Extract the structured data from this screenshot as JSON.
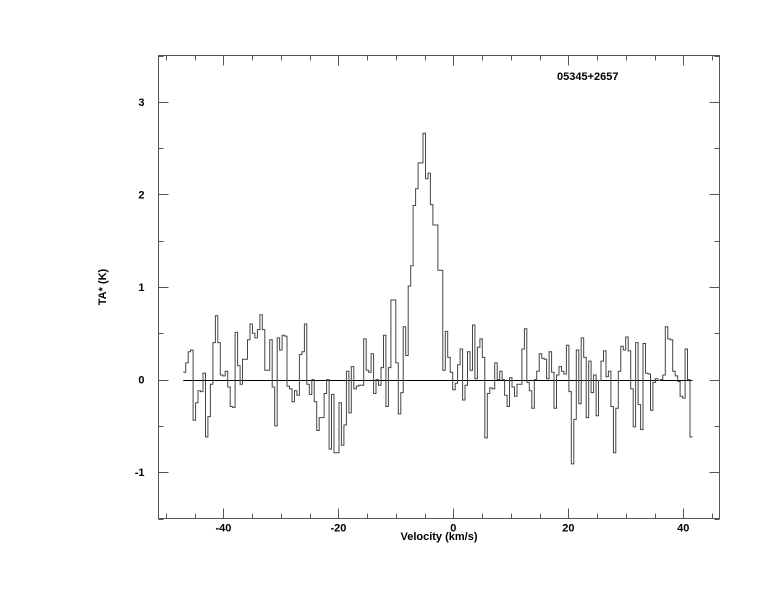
{
  "chart_data": {
    "type": "line",
    "style": "step",
    "annotation": "05345+2657",
    "xlabel": "Velocity (km/s)",
    "ylabel": "TA* (K)",
    "xlim": [
      -51.3,
      46.3
    ],
    "ylim": [
      -1.5,
      3.5
    ],
    "x_ticks": [
      -40,
      -20,
      0,
      20,
      40
    ],
    "x_tick_labels": [
      "-40",
      "-20",
      "0",
      "20",
      "40"
    ],
    "x_minor_step": 5,
    "y_ticks": [
      -1,
      0,
      1,
      2,
      3
    ],
    "y_tick_labels": [
      "-1",
      "0",
      "1",
      "2",
      "3"
    ],
    "y_minor_step": 0.5,
    "grid": false,
    "baseline": 0,
    "line_color": "#444444",
    "velocity_range": [
      -47.0,
      41.6
    ],
    "values": [
      0.08,
      0.18,
      0.3,
      0.32,
      -0.44,
      -0.25,
      -0.12,
      -0.13,
      0.07,
      -0.62,
      -0.4,
      -0.05,
      0.4,
      0.69,
      0.4,
      0.05,
      0.04,
      0.09,
      -0.08,
      -0.29,
      -0.3,
      0.51,
      0.15,
      -0.05,
      0.22,
      0.22,
      0.43,
      0.6,
      0.5,
      0.45,
      0.54,
      0.7,
      0.54,
      0.1,
      0.1,
      0.43,
      -0.08,
      -0.5,
      0.45,
      0.32,
      0.48,
      0.47,
      -0.07,
      -0.1,
      -0.24,
      -0.12,
      -0.17,
      0.27,
      0.3,
      0.6,
      -0.05,
      -0.16,
      0,
      -0.24,
      -0.55,
      -0.41,
      -0.41,
      -0.15,
      0,
      -0.75,
      -0.16,
      -0.79,
      -0.79,
      -0.25,
      -0.71,
      -0.49,
      0.09,
      -0.36,
      0.14,
      -0.1,
      -0.07,
      -0.06,
      -0.06,
      0.44,
      0.1,
      0.08,
      0.28,
      -0.15,
      0,
      -0.06,
      0.13,
      0.48,
      -0.29,
      0.13,
      0.86,
      0.86,
      0.18,
      -0.37,
      -0.14,
      0.57,
      0.26,
      1.01,
      1.23,
      1.88,
      2.06,
      2.34,
      2.34,
      2.66,
      2.17,
      2.23,
      1.89,
      1.67,
      1.67,
      1.18,
      1.18,
      0.1,
      0.52,
      0.24,
      0.08,
      -0.11,
      -0.04,
      0.16,
      0.33,
      -0.22,
      -0.06,
      0.3,
      0.1,
      0.59,
      0.01,
      0.35,
      0.44,
      0.24,
      -0.63,
      -0.15,
      -0.09,
      -0.1,
      0.18,
      0,
      0.09,
      0,
      -0.17,
      -0.29,
      0.02,
      -0.08,
      -0.18,
      -0.05,
      -0.05,
      0.33,
      0.55,
      -0.03,
      -0.12,
      -0.31,
      0,
      0.09,
      0.28,
      0.23,
      0.22,
      0.01,
      0.3,
      0.08,
      -0.31,
      0.05,
      0.14,
      0.09,
      0.06,
      0.37,
      -0.13,
      -0.91,
      -0.43,
      0.32,
      -0.26,
      0.45,
      0.24,
      -0.41,
      0.2,
      -0.14,
      0.05,
      -0.39,
      -0.01,
      0.2,
      0.31,
      0.03,
      0.09,
      -0.29,
      -0.79,
      -0.31,
      0.09,
      0.36,
      0.32,
      0.46,
      0.31,
      -0.1,
      -0.51,
      0.4,
      -0.27,
      -0.54,
      0.39,
      0.07,
      0.06,
      -0.33,
      -0.03,
      0.01,
      -0.01,
      0,
      0.05,
      0.57,
      0.44,
      0.43,
      0.09,
      0.04,
      -0.02,
      -0.18,
      -0.2,
      0.33,
      0,
      -0.62
    ]
  }
}
